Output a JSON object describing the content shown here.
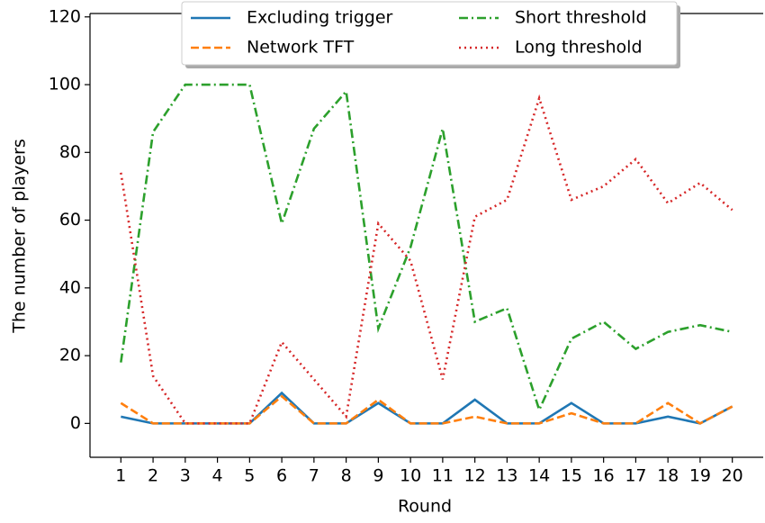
{
  "chart_data": {
    "type": "line",
    "x": [
      1,
      2,
      3,
      4,
      5,
      6,
      7,
      8,
      9,
      10,
      11,
      12,
      13,
      14,
      15,
      16,
      17,
      18,
      19,
      20
    ],
    "series": [
      {
        "name": "Excluding trigger",
        "color": "#1f77b4",
        "linestyle": "solid",
        "values": [
          2,
          0,
          0,
          0,
          0,
          9,
          0,
          0,
          6,
          0,
          0,
          7,
          0,
          0,
          6,
          0,
          0,
          2,
          0,
          5
        ]
      },
      {
        "name": "Network TFT",
        "color": "#ff7f0e",
        "linestyle": "dashed",
        "values": [
          6,
          0,
          0,
          0,
          0,
          8,
          0,
          0,
          7,
          0,
          0,
          2,
          0,
          0,
          3,
          0,
          0,
          6,
          0,
          5
        ]
      },
      {
        "name": "Short threshold",
        "color": "#2ca02c",
        "linestyle": "dashdot",
        "values": [
          18,
          86,
          100,
          100,
          100,
          59,
          87,
          98,
          28,
          52,
          87,
          30,
          34,
          4,
          25,
          30,
          22,
          27,
          29,
          27
        ]
      },
      {
        "name": "Long threshold",
        "color": "#d62728",
        "linestyle": "dotted",
        "values": [
          74,
          14,
          0,
          0,
          0,
          24,
          13,
          2,
          59,
          48,
          13,
          61,
          66,
          96,
          66,
          70,
          78,
          65,
          71,
          63
        ]
      }
    ],
    "xlabel": "Round",
    "ylabel": "The number of players",
    "xlim": [
      0.04,
      20.96
    ],
    "xticks": [
      1,
      2,
      3,
      4,
      5,
      6,
      7,
      8,
      9,
      10,
      11,
      12,
      13,
      14,
      15,
      16,
      17,
      18,
      19,
      20
    ],
    "ylim": [
      -10,
      121
    ],
    "yticks": [
      0,
      20,
      40,
      60,
      80,
      100,
      120
    ],
    "legend": "upper center",
    "legend_columns": 2
  }
}
